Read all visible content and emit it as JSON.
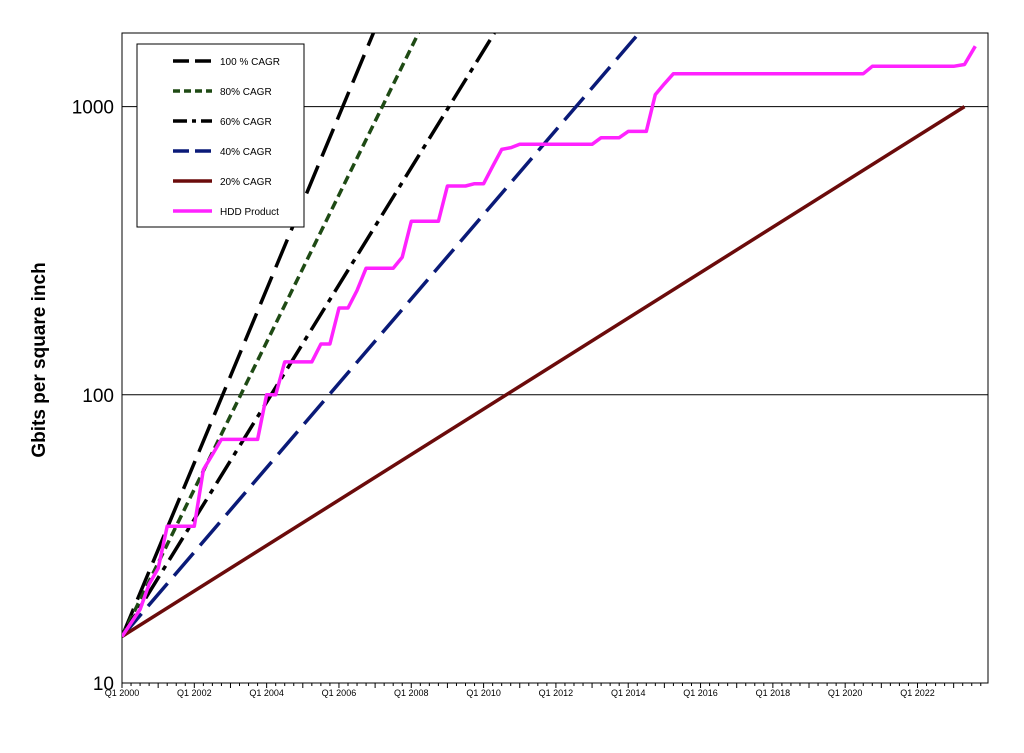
{
  "chart_data": {
    "type": "line",
    "title": "",
    "xlabel": "",
    "ylabel": "Gbits per square inch",
    "y_scale": "log",
    "ylim": [
      10,
      1800
    ],
    "y_ticks": [
      10,
      100,
      1000
    ],
    "y_tick_labels": [
      "10",
      "100",
      "1000"
    ],
    "xlim": [
      2000.0,
      2023.95
    ],
    "x_tick_labels": [
      "Q1 2000",
      "Q1 2002",
      "Q1 2004",
      "Q1 2006",
      "Q1 2008",
      "Q1 2010",
      "Q1 2012",
      "Q1 2014",
      "Q1 2016",
      "Q1 2018",
      "Q1 2020",
      "Q1 2022"
    ],
    "x_tick_values": [
      2000,
      2002,
      2004,
      2006,
      2008,
      2010,
      2012,
      2014,
      2016,
      2018,
      2020,
      2022
    ],
    "grid": "horizontal major only",
    "legend_position": "top-left",
    "series": [
      {
        "name": "100 % CAGR",
        "color": "#000000",
        "dash": "long-dash",
        "x": [
          2000.0,
          2007.0
        ],
        "y": [
          14.5,
          1860
        ]
      },
      {
        "name": "80% CAGR",
        "color": "#1e4a14",
        "dash": "short-dash",
        "x": [
          2000.0,
          2008.2
        ],
        "y": [
          14.5,
          1800
        ]
      },
      {
        "name": "60% CAGR",
        "color": "#000000",
        "dash": "dash-dot",
        "x": [
          2000.0,
          2010.3
        ],
        "y": [
          14.5,
          1800
        ]
      },
      {
        "name": "40% CAGR",
        "color": "#0a1a78",
        "dash": "long-dash",
        "x": [
          2000.0,
          2014.3
        ],
        "y": [
          14.5,
          1800
        ]
      },
      {
        "name": "20% CAGR",
        "color": "#6b0b0b",
        "dash": "solid",
        "x": [
          2000.0,
          2023.3
        ],
        "y": [
          14.5,
          1000
        ]
      },
      {
        "name": "HDD Product",
        "color": "#ff22ff",
        "dash": "solid",
        "x": [
          2000.0,
          2000.5,
          2000.75,
          2001.0,
          2001.25,
          2001.5,
          2001.75,
          2002.0,
          2002.25,
          2002.5,
          2002.75,
          2003.0,
          2003.25,
          2003.5,
          2003.75,
          2004.0,
          2004.25,
          2004.5,
          2004.75,
          2005.0,
          2005.25,
          2005.5,
          2005.75,
          2006.0,
          2006.25,
          2006.5,
          2006.75,
          2007.0,
          2007.25,
          2007.5,
          2007.75,
          2008.0,
          2008.25,
          2008.5,
          2008.75,
          2009.0,
          2009.25,
          2009.5,
          2009.75,
          2010.0,
          2010.25,
          2010.5,
          2010.75,
          2011.0,
          2011.25,
          2011.5,
          2011.75,
          2012.0,
          2012.5,
          2013.0,
          2013.25,
          2013.5,
          2013.75,
          2014.0,
          2014.25,
          2014.5,
          2014.75,
          2015.0,
          2015.25,
          2015.5,
          2016.0,
          2017.0,
          2018.0,
          2019.0,
          2020.0,
          2020.5,
          2020.75,
          2021.0,
          2022.0,
          2023.0,
          2023.3,
          2023.6
        ],
        "y": [
          14.5,
          18,
          22,
          25,
          35,
          35,
          35,
          35,
          55,
          62,
          70,
          70,
          70,
          70,
          70,
          100,
          100,
          130,
          130,
          130,
          130,
          150,
          150,
          200,
          200,
          230,
          275,
          275,
          275,
          275,
          300,
          400,
          400,
          400,
          400,
          530,
          530,
          530,
          540,
          540,
          620,
          710,
          720,
          740,
          740,
          740,
          740,
          740,
          740,
          740,
          780,
          780,
          780,
          820,
          820,
          820,
          1100,
          1200,
          1300,
          1300,
          1300,
          1300,
          1300,
          1300,
          1300,
          1300,
          1380,
          1380,
          1380,
          1380,
          1400,
          1620
        ]
      }
    ]
  }
}
